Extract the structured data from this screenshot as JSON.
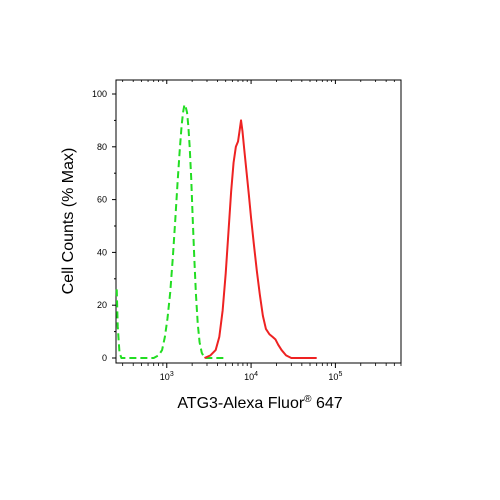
{
  "chart_data": {
    "type": "line",
    "title": "",
    "xlabel": "ATG3-Alexa Fluor",
    "xlabel_superscript": "®",
    "xlabel_suffix": " 647",
    "ylabel": "Cell Counts (% Max)",
    "x_scale": "log",
    "xlim": [
      250,
      600000
    ],
    "ylim": [
      0,
      100
    ],
    "grid": false,
    "y_ticks": [
      "0",
      "20",
      "40",
      "60",
      "80",
      "100"
    ],
    "x_ticks": [
      {
        "value": 1000,
        "base": "10",
        "exp": "3"
      },
      {
        "value": 10000,
        "base": "10",
        "exp": "4"
      },
      {
        "value": 100000,
        "base": "10",
        "exp": "5"
      }
    ],
    "series": [
      {
        "color": "#22dd22",
        "style": "dashed",
        "points": [
          [
            255,
            26
          ],
          [
            262,
            12
          ],
          [
            275,
            2
          ],
          [
            290,
            0
          ],
          [
            700,
            0
          ],
          [
            800,
            1
          ],
          [
            880,
            3
          ],
          [
            950,
            8
          ],
          [
            1020,
            15
          ],
          [
            1100,
            25
          ],
          [
            1180,
            38
          ],
          [
            1260,
            52
          ],
          [
            1340,
            66
          ],
          [
            1420,
            78
          ],
          [
            1500,
            88
          ],
          [
            1560,
            93
          ],
          [
            1620,
            96
          ],
          [
            1680,
            95
          ],
          [
            1740,
            93
          ],
          [
            1800,
            88
          ],
          [
            1870,
            80
          ],
          [
            1950,
            68
          ],
          [
            2030,
            53
          ],
          [
            2120,
            38
          ],
          [
            2220,
            24
          ],
          [
            2330,
            13
          ],
          [
            2450,
            6
          ],
          [
            2600,
            2
          ],
          [
            2800,
            0
          ],
          [
            5000,
            0
          ]
        ]
      },
      {
        "color": "#ee2222",
        "style": "solid",
        "points": [
          [
            2800,
            0
          ],
          [
            3300,
            1
          ],
          [
            3800,
            3
          ],
          [
            4200,
            8
          ],
          [
            4600,
            18
          ],
          [
            5000,
            32
          ],
          [
            5400,
            48
          ],
          [
            5800,
            63
          ],
          [
            6200,
            74
          ],
          [
            6600,
            80
          ],
          [
            7000,
            82
          ],
          [
            7300,
            86
          ],
          [
            7600,
            90
          ],
          [
            7900,
            86
          ],
          [
            8300,
            79
          ],
          [
            8800,
            71
          ],
          [
            9400,
            62
          ],
          [
            10000,
            53
          ],
          [
            10800,
            43
          ],
          [
            11700,
            33
          ],
          [
            12700,
            24
          ],
          [
            13800,
            16
          ],
          [
            15000,
            11
          ],
          [
            16500,
            9
          ],
          [
            18000,
            8
          ],
          [
            19500,
            7
          ],
          [
            21000,
            5
          ],
          [
            23000,
            3
          ],
          [
            26000,
            1
          ],
          [
            30000,
            0
          ],
          [
            60000,
            0
          ]
        ]
      }
    ]
  }
}
